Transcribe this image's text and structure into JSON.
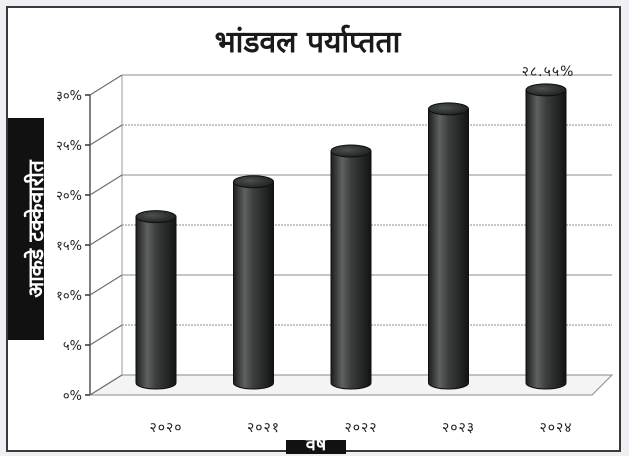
{
  "chart_data": {
    "type": "bar",
    "title": "भांडवल पर्याप्तता",
    "ylabel": "आकडे टक्केवारीत",
    "xlabel": "वर्ष",
    "categories": [
      "२०२०",
      "२०२१",
      "२०२२",
      "२०२३",
      "२०२४"
    ],
    "values": [
      16.2,
      19.6,
      22.6,
      26.7,
      28.55
    ],
    "data_labels": [
      "",
      "",
      "",
      "",
      "२८.५५%"
    ],
    "yticks": [
      0,
      5,
      10,
      15,
      20,
      25,
      30
    ],
    "ytick_labels": [
      "०%",
      "५%",
      "१०%",
      "१५%",
      "२०%",
      "२५%",
      "३०%"
    ],
    "ylim": [
      0,
      30
    ],
    "grid": true,
    "legend": "none",
    "bar_color": "#2e3230",
    "style": "3d-cylinder"
  }
}
